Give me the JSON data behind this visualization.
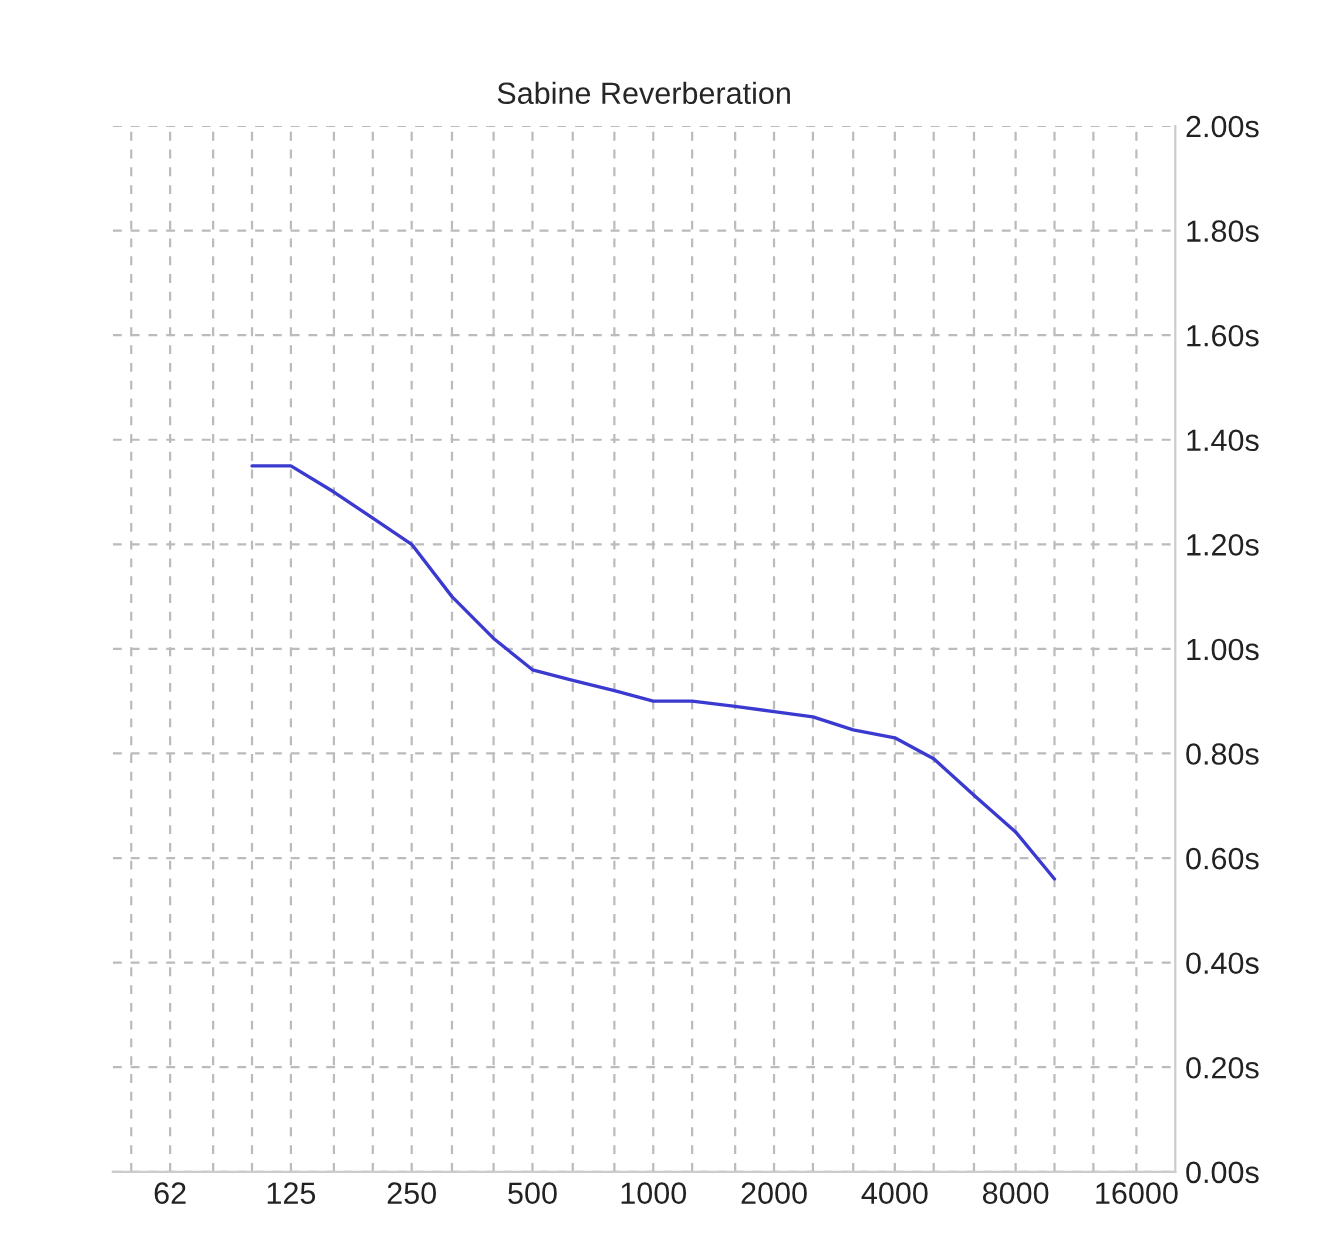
{
  "chart_data": {
    "type": "line",
    "title": "Sabine Reverberation",
    "x": [
      100,
      125,
      160,
      200,
      250,
      315,
      400,
      500,
      630,
      800,
      1000,
      1250,
      1600,
      2000,
      2500,
      3150,
      4000,
      5000,
      6300,
      8000,
      10000
    ],
    "series": [
      {
        "color": "#3a3ad0",
        "values": [
          1.35,
          1.35,
          1.3,
          1.25,
          1.2,
          1.1,
          1.02,
          0.96,
          0.94,
          0.92,
          0.9,
          0.9,
          0.89,
          0.88,
          0.87,
          0.845,
          0.83,
          0.79,
          0.72,
          0.65,
          0.56
        ]
      }
    ],
    "log": "x",
    "xlim": [
      45,
      20000
    ],
    "xticks": [
      {
        "value": 50,
        "label": null
      },
      {
        "value": 62.5,
        "label": "62"
      },
      {
        "value": 80,
        "label": null
      },
      {
        "value": 100,
        "label": null
      },
      125,
      {
        "value": 160,
        "label": null
      },
      {
        "value": 200,
        "label": null
      },
      250,
      {
        "value": 315,
        "label": null
      },
      {
        "value": 400,
        "label": null
      },
      500,
      {
        "value": 630,
        "label": null
      },
      {
        "value": 800,
        "label": null
      },
      1000,
      {
        "value": 1250,
        "label": null
      },
      {
        "value": 1600,
        "label": null
      },
      2000,
      {
        "value": 2500,
        "label": null
      },
      {
        "value": 3150,
        "label": null
      },
      4000,
      {
        "value": 5000,
        "label": null
      },
      {
        "value": 6300,
        "label": null
      },
      8000,
      {
        "value": 10000,
        "label": null
      },
      {
        "value": 12500,
        "label": null
      },
      16000
    ],
    "ylim": [
      0,
      2.0
    ],
    "yticks": [
      {
        "value": 0,
        "label": "0.00s"
      },
      {
        "value": 0.2,
        "label": "0.20s"
      },
      {
        "value": 0.4,
        "label": "0.40s"
      },
      {
        "value": 0.6,
        "label": "0.60s"
      },
      {
        "value": 0.8,
        "label": "0.80s"
      },
      {
        "value": 1.0,
        "label": "1.00s"
      },
      {
        "value": 1.2,
        "label": "1.20s"
      },
      {
        "value": 1.4,
        "label": "1.40s"
      },
      {
        "value": 1.6,
        "label": "1.60s"
      },
      {
        "value": 1.8,
        "label": "1.80s"
      },
      {
        "value": 2.0,
        "label": "2.00s"
      }
    ],
    "grid": true,
    "line_style": "solid",
    "marker": "none"
  }
}
